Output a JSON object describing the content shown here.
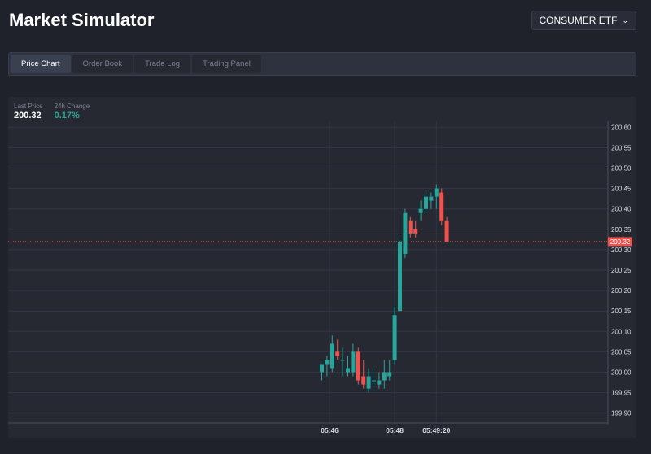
{
  "header": {
    "title": "Market Simulator"
  },
  "asset_selector": {
    "value": "CONSUMER ETF",
    "icon": "chevron-down-icon"
  },
  "tabs": [
    {
      "label": "Price Chart",
      "active": true
    },
    {
      "label": "Order Book",
      "active": false
    },
    {
      "label": "Trade Log",
      "active": false
    },
    {
      "label": "Trading Panel",
      "active": false
    }
  ],
  "stats": {
    "last_price_label": "Last Price",
    "last_price_value": "200.32",
    "change_label": "24h Change",
    "change_value": "0.17%"
  },
  "colors": {
    "up": "#26a69a",
    "down": "#ef5350",
    "background": "#1f222b",
    "panel": "#262932"
  },
  "chart_data": {
    "type": "candlestick",
    "y_ticks": [
      "200.60",
      "200.55",
      "200.50",
      "200.45",
      "200.40",
      "200.35",
      "200.30",
      "200.25",
      "200.20",
      "200.15",
      "200.10",
      "200.05",
      "200.00",
      "199.95",
      "199.90"
    ],
    "ylim": [
      199.88,
      200.61
    ],
    "x_labels": [
      {
        "label": "05:46",
        "index": 1.5
      },
      {
        "label": "05:48",
        "index": 14
      },
      {
        "label": "05:49:20",
        "index": 22
      }
    ],
    "current_price": 200.32,
    "current_price_label": "200.32",
    "candles": [
      {
        "o": 200.0,
        "h": 200.02,
        "l": 199.98,
        "c": 200.02
      },
      {
        "o": 200.02,
        "h": 200.04,
        "l": 199.99,
        "c": 200.03
      },
      {
        "o": 200.01,
        "h": 200.09,
        "l": 200.0,
        "c": 200.07
      },
      {
        "o": 200.05,
        "h": 200.08,
        "l": 200.03,
        "c": 200.04
      },
      {
        "o": 200.03,
        "h": 200.06,
        "l": 199.99,
        "c": 200.03
      },
      {
        "o": 200.0,
        "h": 200.04,
        "l": 199.99,
        "c": 200.01
      },
      {
        "o": 200.0,
        "h": 200.07,
        "l": 199.99,
        "c": 200.05
      },
      {
        "o": 200.05,
        "h": 200.06,
        "l": 199.97,
        "c": 199.98
      },
      {
        "o": 199.99,
        "h": 200.03,
        "l": 199.96,
        "c": 199.97
      },
      {
        "o": 199.96,
        "h": 200.01,
        "l": 199.95,
        "c": 199.99
      },
      {
        "o": 199.98,
        "h": 200.01,
        "l": 199.97,
        "c": 199.98
      },
      {
        "o": 199.97,
        "h": 200.0,
        "l": 199.96,
        "c": 199.98
      },
      {
        "o": 199.98,
        "h": 200.03,
        "l": 199.96,
        "c": 200.0
      },
      {
        "o": 199.99,
        "h": 200.03,
        "l": 199.98,
        "c": 200.0
      },
      {
        "o": 200.03,
        "h": 200.16,
        "l": 200.02,
        "c": 200.14
      },
      {
        "o": 200.15,
        "h": 200.33,
        "l": 200.15,
        "c": 200.32
      },
      {
        "o": 200.29,
        "h": 200.4,
        "l": 200.28,
        "c": 200.39
      },
      {
        "o": 200.37,
        "h": 200.38,
        "l": 200.33,
        "c": 200.34
      },
      {
        "o": 200.35,
        "h": 200.37,
        "l": 200.33,
        "c": 200.34
      },
      {
        "o": 200.39,
        "h": 200.42,
        "l": 200.37,
        "c": 200.4
      },
      {
        "o": 200.4,
        "h": 200.44,
        "l": 200.39,
        "c": 200.43
      },
      {
        "o": 200.42,
        "h": 200.44,
        "l": 200.4,
        "c": 200.43
      },
      {
        "o": 200.43,
        "h": 200.46,
        "l": 200.4,
        "c": 200.45
      },
      {
        "o": 200.44,
        "h": 200.45,
        "l": 200.36,
        "c": 200.37
      },
      {
        "o": 200.37,
        "h": 200.38,
        "l": 200.32,
        "c": 200.32
      }
    ]
  }
}
